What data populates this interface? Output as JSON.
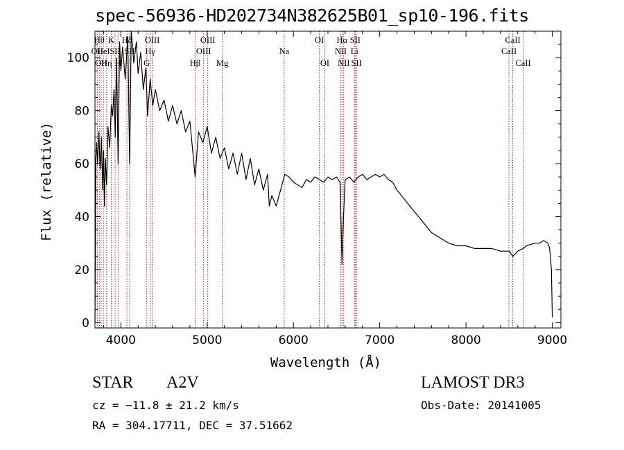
{
  "chart_data": {
    "type": "line",
    "title": "spec-56936-HD202734N382625B01_sp10-196.fits",
    "xlabel": "Wavelength (Å)",
    "ylabel": "Flux (relative)",
    "xlim": [
      3700,
      9100
    ],
    "ylim": [
      -2,
      110
    ],
    "xticks": [
      4000,
      5000,
      6000,
      7000,
      8000,
      9000
    ],
    "yticks": [
      0,
      20,
      40,
      60,
      80,
      100
    ],
    "grid": false,
    "line_color": "#000000",
    "marker_color": "#b22222",
    "series": [
      {
        "name": "flux",
        "x": [
          3700,
          3705,
          3710,
          3720,
          3730,
          3745,
          3760,
          3775,
          3790,
          3800,
          3810,
          3820,
          3835,
          3850,
          3870,
          3890,
          3905,
          3920,
          3935,
          3950,
          3968,
          3985,
          4000,
          4020,
          4050,
          4080,
          4102,
          4120,
          4150,
          4180,
          4200,
          4230,
          4260,
          4290,
          4310,
          4340,
          4370,
          4400,
          4450,
          4500,
          4550,
          4600,
          4650,
          4700,
          4750,
          4800,
          4861,
          4900,
          4950,
          5000,
          5050,
          5100,
          5150,
          5200,
          5250,
          5300,
          5350,
          5400,
          5450,
          5500,
          5550,
          5600,
          5650,
          5700,
          5720,
          5750,
          5800,
          5850,
          5900,
          5950,
          6000,
          6050,
          6100,
          6150,
          6200,
          6250,
          6300,
          6350,
          6400,
          6450,
          6500,
          6540,
          6563,
          6580,
          6600,
          6650,
          6700,
          6750,
          6800,
          6850,
          6900,
          6950,
          7000,
          7050,
          7100,
          7150,
          7200,
          7300,
          7400,
          7500,
          7600,
          7700,
          7800,
          7900,
          8000,
          8100,
          8200,
          8300,
          8400,
          8500,
          8542,
          8600,
          8662,
          8700,
          8800,
          8850,
          8900,
          8950,
          8970,
          8990,
          9000
        ],
        "y": [
          0,
          35,
          62,
          68,
          60,
          72,
          58,
          70,
          50,
          65,
          44,
          62,
          52,
          74,
          66,
          82,
          78,
          88,
          70,
          100,
          60,
          106,
          95,
          104,
          92,
          108,
          60,
          110,
          98,
          106,
          94,
          102,
          88,
          96,
          78,
          92,
          82,
          88,
          80,
          84,
          76,
          82,
          75,
          80,
          72,
          76,
          55,
          72,
          68,
          74,
          64,
          70,
          62,
          66,
          58,
          64,
          56,
          64,
          54,
          62,
          52,
          58,
          50,
          56,
          44,
          48,
          44,
          50,
          56,
          55,
          53,
          52,
          51,
          54,
          53,
          55,
          54,
          53,
          55,
          54,
          55,
          53,
          22,
          40,
          54,
          55,
          53,
          55,
          56,
          54,
          55,
          56,
          55,
          56,
          54,
          53,
          50,
          46,
          42,
          38,
          34,
          32,
          30,
          29,
          29,
          28,
          28,
          28,
          27,
          27,
          25,
          27,
          28,
          29,
          30,
          30,
          31,
          30,
          28,
          20,
          2
        ]
      }
    ],
    "line_markers": [
      {
        "wl": 3727,
        "label": "OII",
        "row": 2
      },
      {
        "wl": 3750,
        "label": "Hθ",
        "row": 1
      },
      {
        "wl": 3771,
        "label": "OII",
        "row": 3
      },
      {
        "wl": 3798,
        "label": "HeI",
        "row": 2
      },
      {
        "wl": 3835,
        "label": "Hη",
        "row": 3
      },
      {
        "wl": 3889,
        "label": "K",
        "row": 1
      },
      {
        "wl": 3933,
        "label": "SII",
        "row": 2
      },
      {
        "wl": 3968,
        "label": "H",
        "row": 3
      },
      {
        "wl": 4070,
        "label": "Hδ",
        "row": 1
      },
      {
        "wl": 4102,
        "label": "SII",
        "row": 2
      },
      {
        "wl": 4300,
        "label": "G",
        "row": 3
      },
      {
        "wl": 4340,
        "label": "Hγ",
        "row": 2
      },
      {
        "wl": 4363,
        "label": "OIII",
        "row": 1
      },
      {
        "wl": 4861,
        "label": "Hβ",
        "row": 3
      },
      {
        "wl": 4959,
        "label": "OIII",
        "row": 2
      },
      {
        "wl": 5007,
        "label": "OIII",
        "row": 1
      },
      {
        "wl": 5175,
        "label": "Mg",
        "row": 3
      },
      {
        "wl": 5893,
        "label": "Na",
        "row": 2
      },
      {
        "wl": 6300,
        "label": "OI",
        "row": 1
      },
      {
        "wl": 6364,
        "label": "OI",
        "row": 3
      },
      {
        "wl": 6548,
        "label": "NII",
        "row": 2
      },
      {
        "wl": 6563,
        "label": "Hα",
        "row": 1
      },
      {
        "wl": 6583,
        "label": "NII",
        "row": 3
      },
      {
        "wl": 6708,
        "label": "Li",
        "row": 2
      },
      {
        "wl": 6716,
        "label": "SII",
        "row": 1
      },
      {
        "wl": 6731,
        "label": "SII",
        "row": 3
      },
      {
        "wl": 8498,
        "label": "CaII",
        "row": 2
      },
      {
        "wl": 8542,
        "label": "CaII",
        "row": 1
      },
      {
        "wl": 8662,
        "label": "CaII",
        "row": 3
      }
    ]
  },
  "info": {
    "object_class": "STAR",
    "subclass": "A2V",
    "survey": "LAMOST DR3",
    "redshift": "cz = −11.8 ± 21.2 km/s",
    "obs_date": "Obs-Date: 20141005",
    "coords": "RA = 304.17711, DEC =  37.51662"
  }
}
